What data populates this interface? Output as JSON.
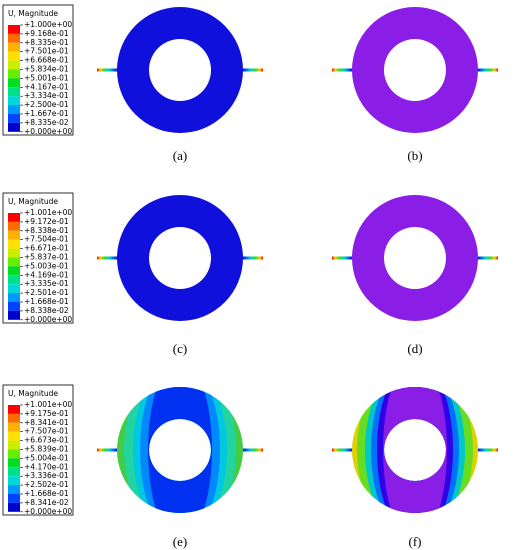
{
  "legends": [
    {
      "title": "U, Magnitude",
      "labels": [
        "+1.000e+00",
        "+9.168e-01",
        "+8.335e-01",
        "+7.501e-01",
        "+6.668e-01",
        "+5.834e-01",
        "+5.001e-01",
        "+4.167e-01",
        "+3.334e-01",
        "+2.500e-01",
        "+1.667e-01",
        "+8.335e-02",
        "+0.000e+00"
      ]
    },
    {
      "title": "U, Magnitude",
      "labels": [
        "+1.001e+00",
        "+9.172e-01",
        "+8.338e-01",
        "+7.504e-01",
        "+6.671e-01",
        "+5.837e-01",
        "+5.003e-01",
        "+4.169e-01",
        "+3.335e-01",
        "+2.501e-01",
        "+1.668e-01",
        "+8.338e-02",
        "+0.000e+00"
      ]
    },
    {
      "title": "U, Magnitude",
      "labels": [
        "+1.001e+00",
        "+9.175e-01",
        "+8.341e-01",
        "+7.507e-01",
        "+6.673e-01",
        "+5.839e-01",
        "+5.004e-01",
        "+4.170e-01",
        "+3.336e-01",
        "+2.502e-01",
        "+1.668e-01",
        "+8.341e-02",
        "+0.000e+00"
      ]
    }
  ],
  "panels": [
    {
      "caption": "(a)"
    },
    {
      "caption": "(b)"
    },
    {
      "caption": "(c)"
    },
    {
      "caption": "(d)"
    },
    {
      "caption": "(e)"
    },
    {
      "caption": "(f)"
    }
  ]
}
